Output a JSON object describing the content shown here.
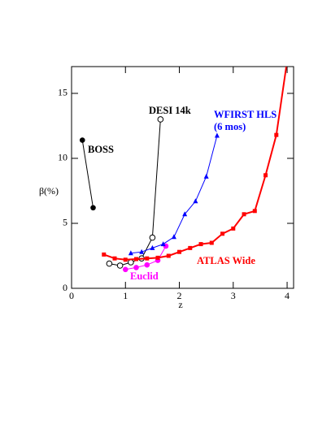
{
  "chart_data": {
    "type": "line",
    "x_label": "z",
    "y_label": "β(%)",
    "xlim": [
      0,
      4.12
    ],
    "ylim": [
      0,
      17.06
    ],
    "xticks": [
      0,
      1,
      2,
      3,
      4
    ],
    "yticks": [
      0,
      5,
      10,
      15
    ],
    "series": [
      {
        "name": "BOSS",
        "color": "#000000",
        "marker": "filled-circle",
        "x": [
          0.2,
          0.4
        ],
        "values": [
          11.4,
          6.2
        ]
      },
      {
        "name": "DESI 14k",
        "color": "#000000",
        "marker": "open-circle",
        "x": [
          0.7,
          0.9,
          1.1,
          1.3,
          1.5,
          1.65
        ],
        "values": [
          1.9,
          1.75,
          2.0,
          2.3,
          3.9,
          13.0
        ]
      },
      {
        "name": "Euclid",
        "color": "#ff00ff",
        "marker": "filled-circle",
        "x": [
          1.0,
          1.2,
          1.4,
          1.6,
          1.75
        ],
        "values": [
          1.45,
          1.6,
          1.8,
          2.15,
          3.25
        ]
      },
      {
        "name": "WFIRST HLS",
        "subname": "(6 mos)",
        "color": "#0000ff",
        "marker": "triangle",
        "x": [
          1.1,
          1.3,
          1.5,
          1.7,
          1.9,
          2.1,
          2.3,
          2.5,
          2.7
        ],
        "values": [
          2.7,
          2.8,
          3.1,
          3.4,
          3.95,
          5.7,
          6.7,
          8.6,
          11.75
        ]
      },
      {
        "name": "ATLAS Wide",
        "color": "#ff0000",
        "marker": "square",
        "x": [
          0.6,
          0.8,
          1.0,
          1.2,
          1.4,
          1.6,
          1.8,
          2.0,
          2.2,
          2.4,
          2.6,
          2.8,
          3.0,
          3.2,
          3.4,
          3.6,
          3.8,
          4.0
        ],
        "values": [
          2.6,
          2.3,
          2.2,
          2.25,
          2.3,
          2.35,
          2.5,
          2.8,
          3.1,
          3.4,
          3.5,
          4.2,
          4.6,
          5.7,
          5.95,
          8.7,
          11.8,
          17.5
        ]
      }
    ]
  }
}
